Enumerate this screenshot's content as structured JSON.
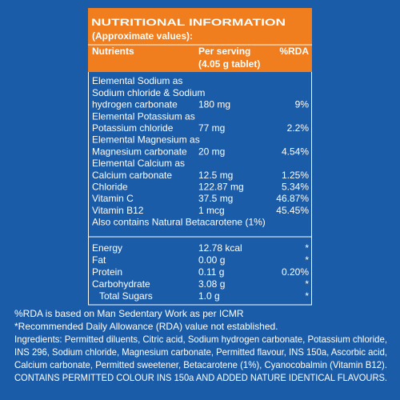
{
  "header": {
    "title": "NUTRITIONAL INFORMATION",
    "subtitle": "(Approximate values):"
  },
  "table": {
    "columns": [
      [
        "Nutrients"
      ],
      [
        "Per serving",
        "(4.05 g tablet)"
      ],
      [
        "%RDA"
      ]
    ],
    "rows": [
      {
        "name": [
          "Elemental Sodium as",
          "Sodium chloride & Sodium",
          "hydrogen carbonate"
        ],
        "serving": "180 mg",
        "rda": "9%"
      },
      {
        "name": [
          "Elemental Potassium as",
          "Potassium chloride"
        ],
        "serving": "77 mg",
        "rda": "2.2%"
      },
      {
        "name": [
          "Elemental Magnesium as",
          "Magnesium carbonate"
        ],
        "serving": "20 mg",
        "rda": "4.54%"
      },
      {
        "name": [
          "Elemental Calcium as",
          "Calcium carbonate"
        ],
        "serving": "12.5 mg",
        "rda": "1.25%"
      },
      {
        "name": [
          "Chloride"
        ],
        "serving": "122.87 mg",
        "rda": "5.34%"
      },
      {
        "name": [
          "Vitamin C"
        ],
        "serving": "37.5 mg",
        "rda": "46.87%"
      },
      {
        "name": [
          "Vitamin B12"
        ],
        "serving": "1 mcg",
        "rda": "45.45%"
      }
    ],
    "note": "Also contains Natural Betacarotene (1%)",
    "energy_rows": [
      {
        "name": [
          "Energy"
        ],
        "serving": "12.78 kcal",
        "rda": "*"
      },
      {
        "name": [
          "Fat"
        ],
        "serving": "0.00 g",
        "rda": "*"
      },
      {
        "name": [
          "Protein"
        ],
        "serving": "0.11 g",
        "rda": "0.20%"
      },
      {
        "name": [
          "Carbohydrate"
        ],
        "serving": "3.08 g",
        "rda": "*"
      },
      {
        "name": [
          "Total Sugars"
        ],
        "serving": "1.0 g",
        "rda": "*"
      }
    ]
  },
  "footnotes": [
    "%RDA is based on Man Sedentary Work as per ICMR",
    "*Recommended Daily Allowance (RDA) value not established.",
    "Ingredients: Permitted diluents, Citric acid, Sodium hydrogen carbonate, Potassium chloride,",
    "INS 296, Sodium chloride, Magnesium carbonate, Permitted flavour, INS 150a, Ascorbic acid,",
    "Calcium carbonate, Permitted sweetener, Betacarotene (1%), Cyanocobalmin (Vitamin B12).",
    "CONTAINS PERMITTED COLOUR INS 150a AND ADDED NATURE IDENTICAL FLAVOURS."
  ]
}
